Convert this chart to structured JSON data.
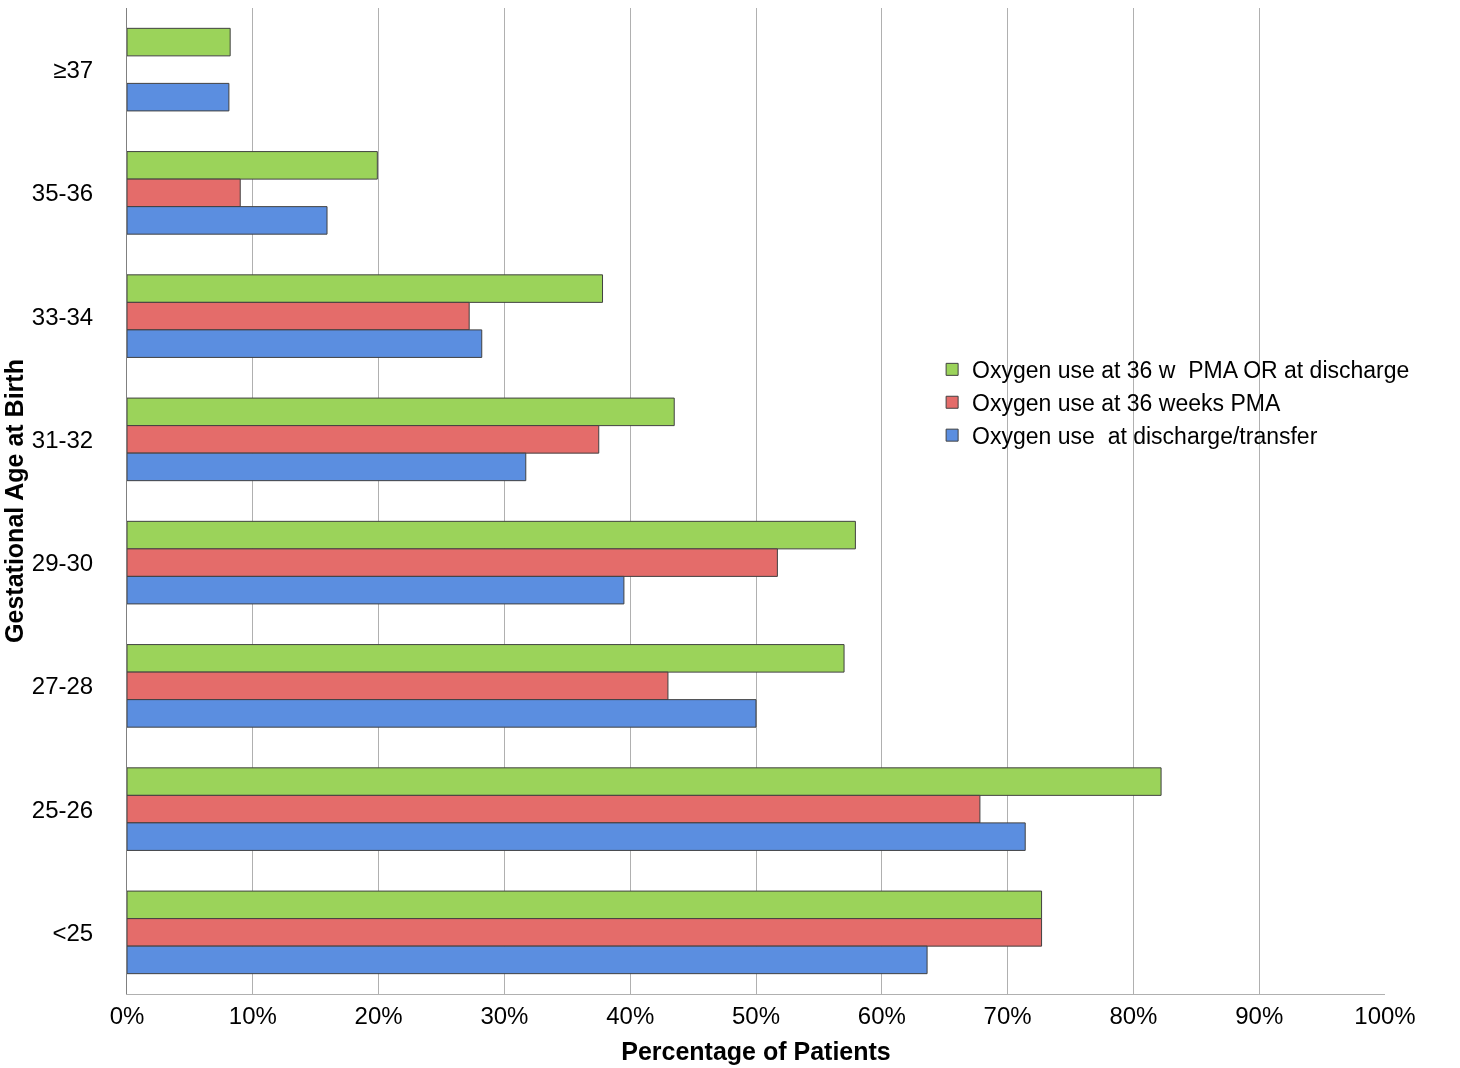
{
  "chart_data": {
    "type": "bar",
    "orientation": "horizontal",
    "xlabel": "Percentage of Patients",
    "ylabel": "Gestational Age at Birth",
    "categories": [
      "≥37",
      "35-36",
      "33-34",
      "31-32",
      "29-30",
      "27-28",
      "25-26",
      "<25"
    ],
    "series": [
      {
        "name": "Oxygen use at 36 w  PMA OR at discharge",
        "color": "#9bd35a",
        "values": [
          8.2,
          19.9,
          37.8,
          43.5,
          57.9,
          57.0,
          82.2,
          72.7
        ]
      },
      {
        "name": "Oxygen use at 36 weeks PMA",
        "color": "#e46c6a",
        "values": [
          null,
          9.0,
          27.2,
          37.5,
          51.7,
          43.0,
          67.8,
          72.7
        ]
      },
      {
        "name": "Oxygen use  at discharge/transfer",
        "color": "#5b8ee0",
        "values": [
          8.1,
          15.9,
          28.2,
          31.7,
          39.5,
          50.0,
          71.4,
          63.6
        ]
      }
    ],
    "xlim": [
      0,
      100
    ],
    "xticks": [
      {
        "value": 0,
        "label": "0%"
      },
      {
        "value": 10,
        "label": "10%"
      },
      {
        "value": 20,
        "label": "20%"
      },
      {
        "value": 30,
        "label": "30%"
      },
      {
        "value": 40,
        "label": "40%"
      },
      {
        "value": 50,
        "label": "50%"
      },
      {
        "value": 60,
        "label": "60%"
      },
      {
        "value": 70,
        "label": "70%"
      },
      {
        "value": 80,
        "label": "80%"
      },
      {
        "value": 90,
        "label": "90%"
      },
      {
        "value": 100,
        "label": "100%"
      }
    ],
    "grid": "x",
    "legend": "right"
  }
}
